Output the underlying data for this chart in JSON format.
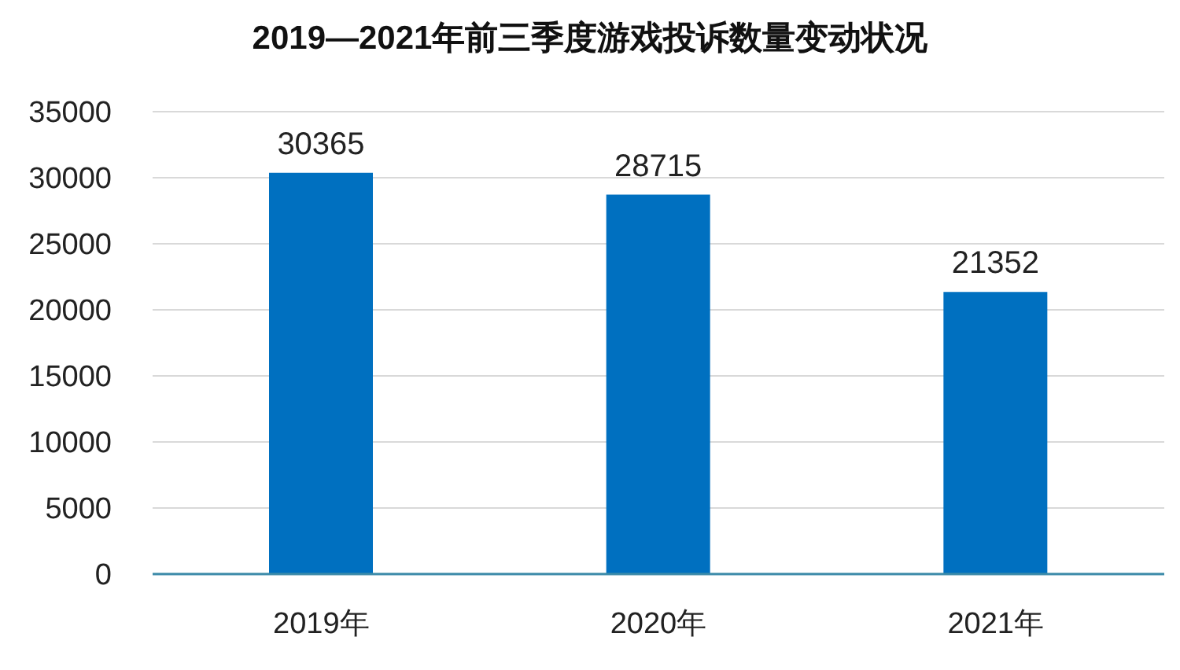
{
  "chart_data": {
    "type": "bar",
    "title": "2019—2021年前三季度游戏投诉数量变动状况",
    "categories": [
      "2019年",
      "2020年",
      "2021年"
    ],
    "values": [
      30365,
      28715,
      21352
    ],
    "color": "#0070c0",
    "ylim": [
      0,
      35000
    ],
    "yticks": [
      0,
      5000,
      10000,
      15000,
      20000,
      25000,
      30000,
      35000
    ],
    "grid": "y",
    "data_labels": true
  }
}
